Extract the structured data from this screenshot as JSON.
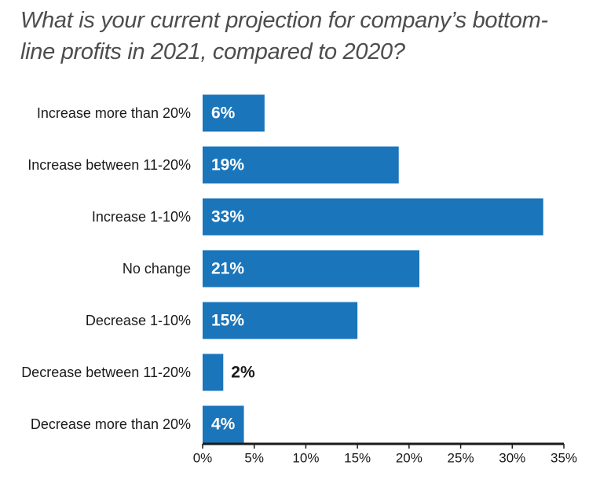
{
  "chart_data": {
    "type": "bar",
    "orientation": "horizontal",
    "title": "What is your current projection for company’s bottom-line profits in 2021, compared to 2020?",
    "categories": [
      "Increase more than 20%",
      "Increase between 11-20%",
      "Increase 1-10%",
      "No change",
      "Decrease 1-10%",
      "Decrease between 11-20%",
      "Decrease more than 20%"
    ],
    "values": [
      6,
      19,
      33,
      21,
      15,
      2,
      4
    ],
    "value_labels": [
      "6%",
      "19%",
      "33%",
      "21%",
      "15%",
      "2%",
      "4%"
    ],
    "xlim": [
      0,
      35
    ],
    "x_ticks": [
      0,
      5,
      10,
      15,
      20,
      25,
      30,
      35
    ],
    "x_tick_labels": [
      "0%",
      "5%",
      "10%",
      "15%",
      "20%",
      "25%",
      "30%",
      "35%"
    ],
    "xlabel": "",
    "ylabel": "",
    "grid": false,
    "legend": "none",
    "colors": {
      "bar": "#1a75bb",
      "label_inside": "#ffffff",
      "label_outside": "#1a1a1a",
      "axis": "#1a1a1a",
      "category_text": "#1a1a1a",
      "title": "#4d4d4d"
    }
  }
}
